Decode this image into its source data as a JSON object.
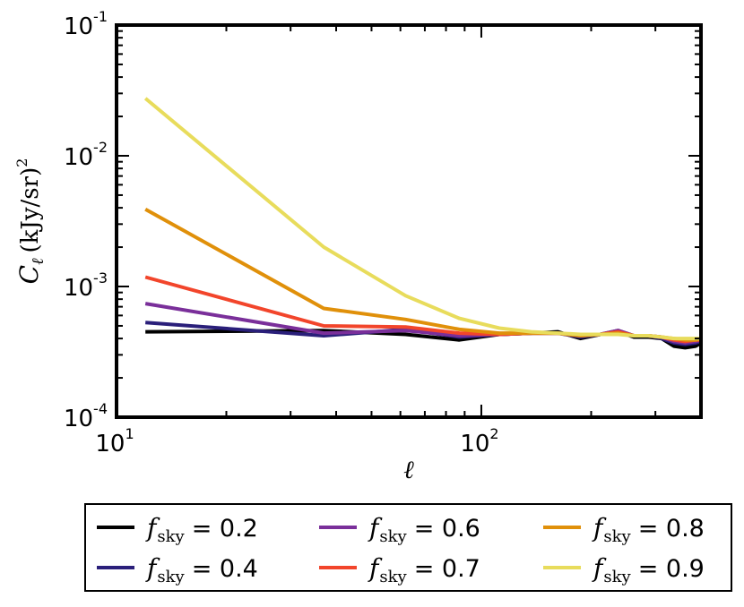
{
  "chart_data": {
    "type": "line",
    "title": "",
    "xlabel": "ℓ",
    "ylabel": {
      "main": "C",
      "sub": "ℓ",
      "unit": "(kJy/sr)",
      "power": "2"
    },
    "xscale": "log",
    "yscale": "log",
    "xlim": [
      10,
      400
    ],
    "ylim": [
      0.0001,
      0.1
    ],
    "x_ticks": [
      {
        "value": 10,
        "base": "10",
        "exp": "1"
      },
      {
        "value": 100,
        "base": "10",
        "exp": "2"
      }
    ],
    "y_ticks": [
      {
        "value": 0.1,
        "base": "10",
        "exp": "-1"
      },
      {
        "value": 0.01,
        "base": "10",
        "exp": "-2"
      },
      {
        "value": 0.001,
        "base": "10",
        "exp": "-3"
      },
      {
        "value": 0.0001,
        "base": "10",
        "exp": "-4"
      }
    ],
    "legend_position": "bottom-outside",
    "legend_columns": 3,
    "series": [
      {
        "name": "f_sky = 0.2",
        "symbol": "f",
        "sub": "sky",
        "value_text": "= 0.2",
        "color": "#000000",
        "x": [
          12,
          37,
          62,
          87,
          112,
          137,
          162,
          187,
          212,
          237,
          262,
          287,
          312,
          337,
          362,
          387,
          400
        ],
        "y": [
          0.00045,
          0.00046,
          0.00043,
          0.00039,
          0.00043,
          0.00044,
          0.00045,
          0.0004,
          0.00043,
          0.00045,
          0.00041,
          0.00041,
          0.0004,
          0.00035,
          0.00034,
          0.00035,
          0.00037
        ]
      },
      {
        "name": "f_sky = 0.4",
        "symbol": "f",
        "sub": "sky",
        "value_text": "= 0.4",
        "color": "#2a1f7a",
        "x": [
          12,
          37,
          62,
          87,
          112,
          137,
          162,
          187,
          212,
          237,
          262,
          287,
          312,
          337,
          362,
          387,
          400
        ],
        "y": [
          0.00053,
          0.00042,
          0.00047,
          0.00041,
          0.00043,
          0.00044,
          0.00044,
          0.00041,
          0.00043,
          0.00046,
          0.00042,
          0.00042,
          0.0004,
          0.00037,
          0.00036,
          0.00037,
          0.00038
        ]
      },
      {
        "name": "f_sky = 0.6",
        "symbol": "f",
        "sub": "sky",
        "value_text": "= 0.6",
        "color": "#7a2f9a",
        "x": [
          12,
          37,
          62,
          87,
          112,
          137,
          162,
          187,
          212,
          237,
          262,
          287,
          312,
          337,
          362,
          387,
          400
        ],
        "y": [
          0.00074,
          0.00044,
          0.00046,
          0.00042,
          0.00043,
          0.00044,
          0.00044,
          0.00042,
          0.00043,
          0.00046,
          0.00042,
          0.00042,
          0.00041,
          0.00038,
          0.00037,
          0.00038,
          0.00039
        ]
      },
      {
        "name": "f_sky = 0.7",
        "symbol": "f",
        "sub": "sky",
        "value_text": "= 0.7",
        "color": "#f2452b",
        "x": [
          12,
          37,
          62,
          87,
          112,
          137,
          162,
          187,
          212,
          237,
          262,
          287,
          312,
          337,
          362,
          387,
          400
        ],
        "y": [
          0.00118,
          0.0005,
          0.00049,
          0.00044,
          0.00043,
          0.00044,
          0.00044,
          0.00042,
          0.00043,
          0.00045,
          0.00042,
          0.00042,
          0.00041,
          0.00039,
          0.00038,
          0.00039,
          0.00039
        ]
      },
      {
        "name": "f_sky = 0.8",
        "symbol": "f",
        "sub": "sky",
        "value_text": "= 0.8",
        "color": "#e0900a",
        "x": [
          12,
          37,
          62,
          87,
          112,
          137,
          162,
          187,
          212,
          237,
          262,
          287,
          312,
          337,
          362,
          387,
          400
        ],
        "y": [
          0.0039,
          0.00068,
          0.00056,
          0.00047,
          0.00044,
          0.00044,
          0.00044,
          0.00042,
          0.00043,
          0.00044,
          0.00042,
          0.00042,
          0.00041,
          0.0004,
          0.00039,
          0.00039,
          0.0004
        ]
      },
      {
        "name": "f_sky = 0.9",
        "symbol": "f",
        "sub": "sky",
        "value_text": "= 0.9",
        "color": "#e8dc5c",
        "x": [
          12,
          37,
          62,
          87,
          112,
          137,
          162,
          187,
          212,
          237,
          262,
          287,
          312,
          337,
          362,
          387,
          400
        ],
        "y": [
          0.0275,
          0.002,
          0.00085,
          0.00057,
          0.00048,
          0.00045,
          0.00044,
          0.00043,
          0.00043,
          0.00043,
          0.00042,
          0.00042,
          0.00041,
          0.0004,
          0.0004,
          0.0004,
          0.0004
        ]
      }
    ]
  }
}
